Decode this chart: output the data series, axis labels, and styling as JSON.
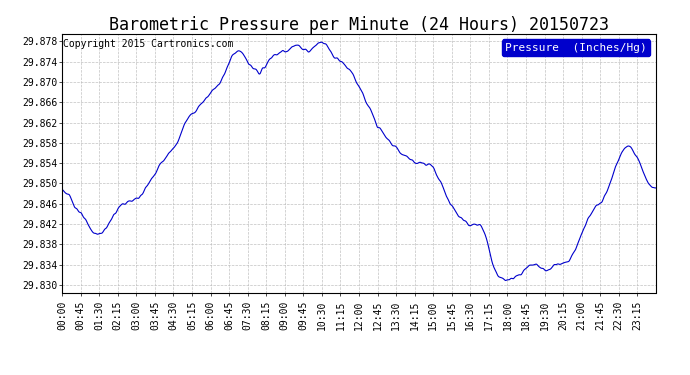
{
  "title": "Barometric Pressure per Minute (24 Hours) 20150723",
  "copyright": "Copyright 2015 Cartronics.com",
  "legend_label": "Pressure  (Inches/Hg)",
  "line_color": "#0000cc",
  "background_color": "#ffffff",
  "grid_color": "#bbbbbb",
  "ylim": [
    29.8285,
    29.8795
  ],
  "yticks": [
    29.83,
    29.834,
    29.838,
    29.842,
    29.846,
    29.85,
    29.854,
    29.858,
    29.862,
    29.866,
    29.87,
    29.874,
    29.878
  ],
  "xtick_labels": [
    "00:00",
    "00:45",
    "01:30",
    "02:15",
    "03:00",
    "03:45",
    "04:30",
    "05:15",
    "06:00",
    "06:45",
    "07:30",
    "08:15",
    "09:00",
    "09:45",
    "10:30",
    "11:15",
    "12:00",
    "12:45",
    "13:30",
    "14:15",
    "15:00",
    "15:45",
    "16:30",
    "17:15",
    "18:00",
    "18:45",
    "19:30",
    "20:15",
    "21:00",
    "21:45",
    "22:30",
    "23:15"
  ],
  "title_fontsize": 12,
  "tick_fontsize": 7,
  "copyright_fontsize": 7,
  "legend_fontsize": 8,
  "legend_facecolor": "#0000cc",
  "legend_textcolor": "#ffffff"
}
